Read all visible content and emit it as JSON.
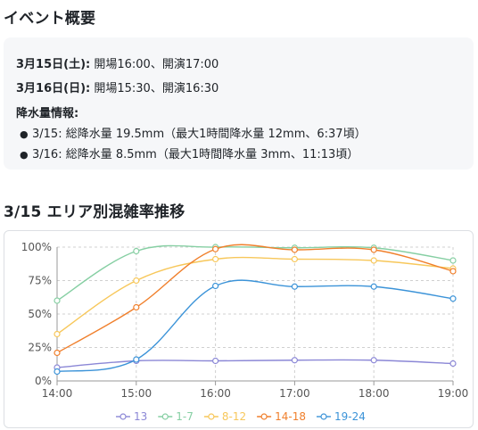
{
  "event": {
    "heading": "イベント概要",
    "day1": {
      "date": "3月15日(土):",
      "text": " 開場16:00、開演17:00"
    },
    "day2": {
      "date": "3月16日(日):",
      "text": " 開場15:30、開演16:30"
    },
    "rain": {
      "heading": "降水量情報:",
      "items": [
        "3/15: 総降水量 19.5mm（最大1時間降水量 12mm、6:37頃）",
        "3/16: 総降水量 8.5mm（最大1時間降水量 3mm、11:13頃）"
      ]
    }
  },
  "chart_heading": "3/15 エリア別混雑率推移",
  "chart_data": {
    "type": "line",
    "x": [
      "14:00",
      "15:00",
      "16:00",
      "17:00",
      "18:00",
      "19:00"
    ],
    "ylim": [
      0,
      100
    ],
    "yticks": [
      "0%",
      "25%",
      "50%",
      "75%",
      "100%"
    ],
    "grid": true,
    "legend_position": "bottom",
    "series": [
      {
        "name": "13",
        "color": "#8b87d6",
        "values": [
          10,
          15,
          15,
          15.5,
          15.5,
          13
        ]
      },
      {
        "name": "1-7",
        "color": "#86cfa3",
        "values": [
          60,
          97,
          100,
          99.5,
          99.5,
          90
        ]
      },
      {
        "name": "8-12",
        "color": "#f7c75a",
        "values": [
          35,
          75,
          91,
          91,
          90,
          84
        ]
      },
      {
        "name": "14-18",
        "color": "#f07f2b",
        "values": [
          21,
          55,
          98.5,
          98,
          98,
          82
        ]
      },
      {
        "name": "19-24",
        "color": "#3b93d8",
        "values": [
          7,
          16,
          71,
          70.5,
          70.5,
          61.5
        ]
      }
    ]
  }
}
